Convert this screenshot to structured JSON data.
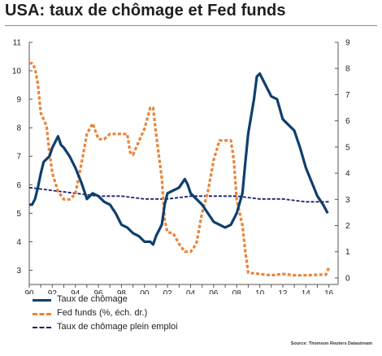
{
  "title": "USA: taux de chômage et Fed funds",
  "source": "Source: Thomson Reuters Datastream",
  "chart_data": {
    "type": "line",
    "x_ticks": [
      "90",
      "92",
      "94",
      "96",
      "98",
      "00",
      "02",
      "04",
      "06",
      "08",
      "10",
      "12",
      "14",
      "16"
    ],
    "xlim": [
      1990,
      2016.8
    ],
    "y_left": {
      "ticks": [
        "3",
        "4",
        "5",
        "6",
        "7",
        "8",
        "9",
        "10",
        "11"
      ],
      "lim": [
        2.5,
        11
      ]
    },
    "y_right": {
      "ticks": [
        "0",
        "1",
        "2",
        "3",
        "4",
        "5",
        "6",
        "7",
        "8",
        "9"
      ],
      "lim": [
        -0.25,
        9
      ]
    },
    "grid": false,
    "legend_position": "bottom-left",
    "series": [
      {
        "name": "Taux de chômage",
        "axis": "left",
        "color": "#0e3f6e",
        "style": "solid",
        "points": [
          [
            1990.0,
            5.3
          ],
          [
            1990.25,
            5.3
          ],
          [
            1990.5,
            5.5
          ],
          [
            1990.75,
            5.9
          ],
          [
            1991.0,
            6.4
          ],
          [
            1991.25,
            6.8
          ],
          [
            1991.5,
            6.9
          ],
          [
            1991.75,
            7.0
          ],
          [
            1992.0,
            7.3
          ],
          [
            1992.5,
            7.7
          ],
          [
            1992.75,
            7.4
          ],
          [
            1993.0,
            7.3
          ],
          [
            1993.5,
            7.0
          ],
          [
            1994.0,
            6.6
          ],
          [
            1994.5,
            6.1
          ],
          [
            1994.75,
            5.8
          ],
          [
            1995.0,
            5.5
          ],
          [
            1995.5,
            5.7
          ],
          [
            1996.0,
            5.6
          ],
          [
            1996.5,
            5.4
          ],
          [
            1997.0,
            5.3
          ],
          [
            1997.5,
            5.0
          ],
          [
            1998.0,
            4.6
          ],
          [
            1998.5,
            4.5
          ],
          [
            1999.0,
            4.3
          ],
          [
            1999.5,
            4.2
          ],
          [
            2000.0,
            4.0
          ],
          [
            2000.5,
            4.0
          ],
          [
            2000.75,
            3.9
          ],
          [
            2001.0,
            4.2
          ],
          [
            2001.5,
            4.6
          ],
          [
            2001.75,
            5.3
          ],
          [
            2002.0,
            5.7
          ],
          [
            2002.5,
            5.8
          ],
          [
            2003.0,
            5.9
          ],
          [
            2003.5,
            6.2
          ],
          [
            2003.75,
            6.0
          ],
          [
            2004.0,
            5.7
          ],
          [
            2004.5,
            5.5
          ],
          [
            2005.0,
            5.3
          ],
          [
            2005.5,
            5.0
          ],
          [
            2006.0,
            4.7
          ],
          [
            2006.5,
            4.6
          ],
          [
            2007.0,
            4.5
          ],
          [
            2007.5,
            4.6
          ],
          [
            2008.0,
            5.0
          ],
          [
            2008.5,
            5.7
          ],
          [
            2008.75,
            6.8
          ],
          [
            2009.0,
            7.8
          ],
          [
            2009.5,
            9.0
          ],
          [
            2009.75,
            9.8
          ],
          [
            2010.0,
            9.9
          ],
          [
            2010.5,
            9.5
          ],
          [
            2011.0,
            9.1
          ],
          [
            2011.5,
            9.0
          ],
          [
            2012.0,
            8.3
          ],
          [
            2012.5,
            8.1
          ],
          [
            2013.0,
            7.9
          ],
          [
            2013.5,
            7.3
          ],
          [
            2014.0,
            6.6
          ],
          [
            2014.5,
            6.1
          ],
          [
            2015.0,
            5.6
          ],
          [
            2015.5,
            5.3
          ],
          [
            2015.9,
            5.0
          ]
        ]
      },
      {
        "name": "Fed funds (%, éch. dr.)",
        "axis": "right",
        "color": "#e8843a",
        "style": "dashed",
        "points": [
          [
            1990.0,
            8.2
          ],
          [
            1990.25,
            8.2
          ],
          [
            1990.5,
            8.0
          ],
          [
            1990.75,
            7.4
          ],
          [
            1991.0,
            6.3
          ],
          [
            1991.5,
            5.8
          ],
          [
            1991.75,
            4.8
          ],
          [
            1992.0,
            4.0
          ],
          [
            1992.5,
            3.3
          ],
          [
            1993.0,
            3.0
          ],
          [
            1993.5,
            3.0
          ],
          [
            1994.0,
            3.2
          ],
          [
            1994.5,
            4.3
          ],
          [
            1995.0,
            5.5
          ],
          [
            1995.5,
            5.9
          ],
          [
            1996.0,
            5.3
          ],
          [
            1996.5,
            5.3
          ],
          [
            1997.0,
            5.5
          ],
          [
            1997.5,
            5.5
          ],
          [
            1998.0,
            5.5
          ],
          [
            1998.5,
            5.5
          ],
          [
            1998.75,
            4.8
          ],
          [
            1999.0,
            4.7
          ],
          [
            1999.5,
            5.2
          ],
          [
            2000.0,
            5.7
          ],
          [
            2000.5,
            6.5
          ],
          [
            2000.75,
            6.5
          ],
          [
            2001.0,
            5.5
          ],
          [
            2001.5,
            3.8
          ],
          [
            2001.75,
            2.2
          ],
          [
            2002.0,
            1.75
          ],
          [
            2002.5,
            1.7
          ],
          [
            2003.0,
            1.3
          ],
          [
            2003.5,
            1.0
          ],
          [
            2004.0,
            1.0
          ],
          [
            2004.5,
            1.3
          ],
          [
            2005.0,
            2.5
          ],
          [
            2005.5,
            3.3
          ],
          [
            2006.0,
            4.5
          ],
          [
            2006.5,
            5.25
          ],
          [
            2007.0,
            5.25
          ],
          [
            2007.5,
            5.25
          ],
          [
            2007.75,
            4.5
          ],
          [
            2008.0,
            3.0
          ],
          [
            2008.5,
            2.0
          ],
          [
            2008.75,
            1.0
          ],
          [
            2009.0,
            0.2
          ],
          [
            2010.0,
            0.15
          ],
          [
            2011.0,
            0.1
          ],
          [
            2012.0,
            0.15
          ],
          [
            2013.0,
            0.1
          ],
          [
            2014.0,
            0.1
          ],
          [
            2015.0,
            0.12
          ],
          [
            2015.75,
            0.13
          ],
          [
            2016.0,
            0.4
          ]
        ]
      },
      {
        "name": "Taux de chômage plein emploi",
        "axis": "left",
        "color": "#1b1f6e",
        "style": "dotted",
        "points": [
          [
            1990.0,
            5.9
          ],
          [
            1992.0,
            5.8
          ],
          [
            1994.0,
            5.7
          ],
          [
            1996.0,
            5.6
          ],
          [
            1998.0,
            5.6
          ],
          [
            2000.0,
            5.5
          ],
          [
            2002.0,
            5.5
          ],
          [
            2004.0,
            5.6
          ],
          [
            2006.0,
            5.6
          ],
          [
            2008.0,
            5.6
          ],
          [
            2010.0,
            5.5
          ],
          [
            2012.0,
            5.5
          ],
          [
            2014.0,
            5.4
          ],
          [
            2016.0,
            5.4
          ]
        ]
      }
    ]
  }
}
